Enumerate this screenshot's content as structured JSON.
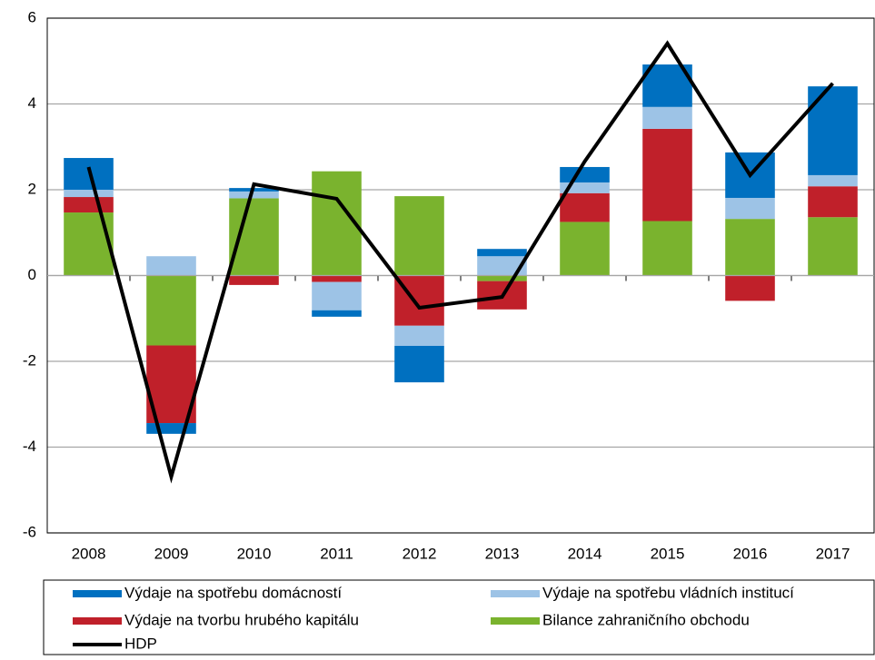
{
  "chart_data": {
    "type": "bar",
    "stacked": true,
    "categories": [
      "2008",
      "2009",
      "2010",
      "2011",
      "2012",
      "2013",
      "2014",
      "2015",
      "2016",
      "2017"
    ],
    "series": [
      {
        "name": "Výdaje na spotřebu domácností",
        "type": "bar",
        "color": "#0070c0",
        "values": [
          0.74,
          -0.25,
          0.08,
          -0.15,
          -0.85,
          0.17,
          0.36,
          0.99,
          1.06,
          2.07
        ]
      },
      {
        "name": "Výdaje na spotřebu vládních institucí",
        "type": "bar",
        "color": "#9dc3e6",
        "values": [
          0.17,
          0.45,
          0.16,
          -0.66,
          -0.47,
          0.45,
          0.25,
          0.51,
          0.49,
          0.26
        ]
      },
      {
        "name": "Výdaje na tvorbu hrubého kapitálu",
        "type": "bar",
        "color": "#c0202a",
        "values": [
          0.36,
          -1.81,
          -0.22,
          -0.15,
          -1.17,
          -0.66,
          0.67,
          2.15,
          -0.59,
          0.72
        ]
      },
      {
        "name": "Bilance zahraničního obchodu",
        "type": "bar",
        "color": "#7ab32e",
        "values": [
          1.47,
          -1.63,
          1.8,
          2.43,
          1.85,
          -0.13,
          1.25,
          1.27,
          1.32,
          1.36
        ]
      },
      {
        "name": "HDP",
        "type": "line",
        "color": "#000000",
        "values": [
          2.53,
          -4.69,
          2.13,
          1.79,
          -0.75,
          -0.5,
          2.66,
          5.41,
          2.34,
          4.48
        ]
      }
    ],
    "ylim": [
      -6,
      6
    ],
    "yticks": [
      -6,
      -4,
      -2,
      0,
      2,
      4,
      6
    ],
    "grid": true,
    "legend": "bottom"
  }
}
